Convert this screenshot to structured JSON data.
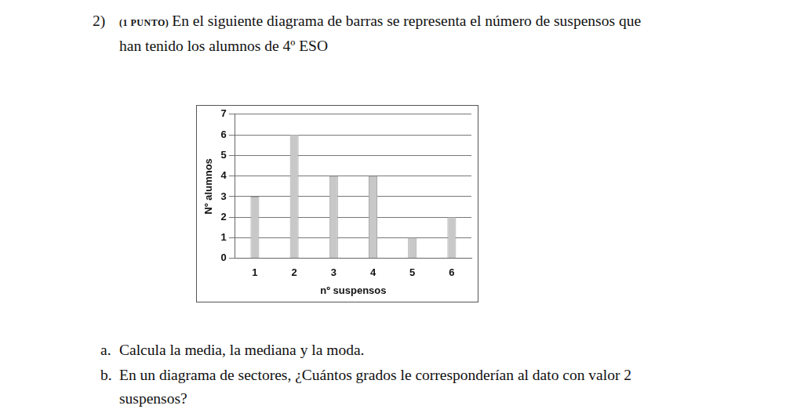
{
  "question": {
    "number": "2)",
    "points": "(1 PUNTO)",
    "text": "En el siguiente diagrama de barras se representa el número de suspensos que han tenido los alumnos de 4º ESO"
  },
  "parts": [
    {
      "label": "a.",
      "text": "Calcula la media, la mediana y la moda."
    },
    {
      "label": "b.",
      "text": "En un diagrama de sectores, ¿Cuántos grados le corresponderían al dato con valor 2 suspensos?"
    }
  ],
  "chart_data": {
    "type": "bar",
    "x_label": "nº suspensos",
    "y_label": "Nº alumnos",
    "categories": [
      "1",
      "2",
      "3",
      "4",
      "5",
      "6"
    ],
    "values": [
      3,
      6,
      4,
      4,
      1,
      2
    ],
    "color": "#c8c8c8",
    "ylim": [
      0,
      7
    ],
    "yticks": [
      0,
      1,
      2,
      3,
      4,
      5,
      6,
      7
    ],
    "grid": true
  }
}
